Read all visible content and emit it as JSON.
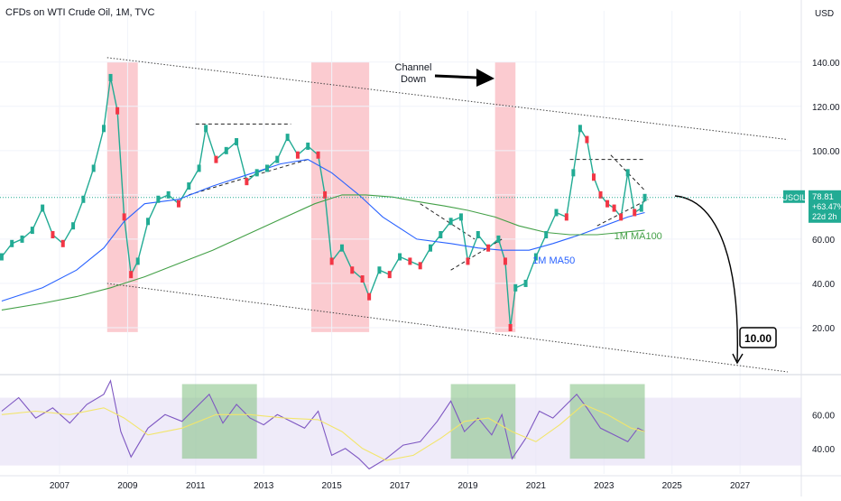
{
  "header": {
    "title": "CFDs on WTI Crude Oil, 1M, TVC",
    "currency": "USD"
  },
  "price_tag": {
    "symbol": "USOIL",
    "price": "78.81",
    "change": "+63.47%",
    "countdown": "22d 2h",
    "color": "#22ab94"
  },
  "annotations": {
    "channel_label_line1": "Channel",
    "channel_label_line2": "Down",
    "ma50_label": "1M MA50",
    "ma100_label": "1M MA100",
    "target_label": "10.00"
  },
  "colors": {
    "candle_up": "#22ab94",
    "candle_down": "#f23645",
    "ma50": "#2962ff",
    "ma100": "#43a047",
    "rsi": "#7e57c2",
    "rsi_ma": "#f2e56b",
    "red_zone": "#f7a1a9",
    "green_zone": "#7fbf7f",
    "rsi_band": "#e8e3f7"
  },
  "chart_data": [
    {
      "type": "candlestick",
      "title": "CFDs on WTI Crude Oil, 1M, TVC",
      "y_unit": "USD",
      "y_ticks": [
        20,
        40,
        60,
        80,
        100,
        120,
        140
      ],
      "y_tick_labels": [
        "20.00",
        "40.00",
        "60.00",
        "80.00",
        "100.00",
        "120.00",
        "140.00"
      ],
      "ylim": [
        0,
        155
      ],
      "x_ticks": [
        "2007",
        "2009",
        "2011",
        "2013",
        "2015",
        "2017",
        "2019",
        "2021",
        "2023",
        "2025",
        "2027"
      ],
      "xlim": [
        2005.25,
        2028.8
      ],
      "grid": true,
      "series": [
        {
          "name": "Price",
          "x": [
            2005.3,
            2005.6,
            2005.9,
            2006.2,
            2006.5,
            2006.8,
            2007.1,
            2007.4,
            2007.7,
            2008.0,
            2008.3,
            2008.5,
            2008.7,
            2008.9,
            2009.1,
            2009.3,
            2009.6,
            2009.9,
            2010.2,
            2010.5,
            2010.8,
            2011.1,
            2011.3,
            2011.6,
            2011.9,
            2012.2,
            2012.5,
            2012.8,
            2013.1,
            2013.4,
            2013.7,
            2014.0,
            2014.3,
            2014.6,
            2014.8,
            2015.0,
            2015.3,
            2015.6,
            2015.9,
            2016.1,
            2016.4,
            2016.7,
            2017.0,
            2017.3,
            2017.6,
            2017.9,
            2018.2,
            2018.5,
            2018.8,
            2019.0,
            2019.3,
            2019.6,
            2019.9,
            2020.1,
            2020.25,
            2020.4,
            2020.7,
            2021.0,
            2021.3,
            2021.6,
            2021.9,
            2022.1,
            2022.3,
            2022.5,
            2022.7,
            2022.9,
            2023.1,
            2023.3,
            2023.5,
            2023.7,
            2023.9,
            2024.1,
            2024.2
          ],
          "y": [
            52,
            58,
            60,
            64,
            74,
            62,
            58,
            66,
            78,
            92,
            110,
            133,
            118,
            70,
            44,
            50,
            68,
            78,
            80,
            76,
            84,
            92,
            110,
            96,
            100,
            104,
            86,
            90,
            92,
            96,
            106,
            98,
            102,
            98,
            80,
            50,
            56,
            46,
            42,
            34,
            46,
            44,
            52,
            50,
            48,
            56,
            62,
            68,
            70,
            50,
            62,
            56,
            60,
            50,
            20,
            38,
            40,
            52,
            62,
            72,
            70,
            90,
            110,
            105,
            88,
            80,
            76,
            74,
            70,
            90,
            72,
            74,
            78.81
          ]
        },
        {
          "name": "1M MA50",
          "x": [
            2005.3,
            2006.5,
            2007.5,
            2008.3,
            2008.9,
            2009.5,
            2010.5,
            2011.5,
            2012.5,
            2013.5,
            2014.3,
            2015.0,
            2015.8,
            2016.5,
            2017.5,
            2018.5,
            2019.3,
            2020.0,
            2020.8,
            2021.5,
            2022.3,
            2023.0,
            2023.7,
            2024.2
          ],
          "y": [
            32,
            38,
            46,
            56,
            68,
            76,
            78,
            84,
            89,
            94,
            96,
            90,
            80,
            70,
            60,
            58,
            56,
            55,
            55,
            58,
            62,
            66,
            70,
            72
          ]
        },
        {
          "name": "1M MA100",
          "x": [
            2005.3,
            2006.5,
            2007.5,
            2008.5,
            2009.5,
            2010.5,
            2011.5,
            2012.5,
            2013.5,
            2014.5,
            2015.3,
            2016.0,
            2016.8,
            2017.5,
            2018.3,
            2019.0,
            2019.8,
            2020.5,
            2021.3,
            2022.0,
            2022.8,
            2023.5,
            2024.2
          ],
          "y": [
            28,
            31,
            34,
            38,
            43,
            49,
            55,
            62,
            69,
            76,
            80,
            80,
            79,
            77,
            75,
            73,
            70,
            66,
            63,
            62,
            62,
            63,
            64
          ]
        }
      ],
      "red_zones": [
        [
          2008.4,
          2009.3
        ],
        [
          2014.4,
          2016.1
        ],
        [
          2019.8,
          2020.4
        ]
      ]
    },
    {
      "type": "line",
      "y_ticks": [
        40,
        60
      ],
      "y_tick_labels": [
        "40.00",
        "60.00"
      ],
      "ylim": [
        25,
        82
      ],
      "band": [
        30,
        70
      ],
      "grid": true,
      "series": [
        {
          "name": "RSI",
          "x": [
            2005.3,
            2005.8,
            2006.3,
            2006.8,
            2007.3,
            2007.8,
            2008.3,
            2008.5,
            2008.8,
            2009.1,
            2009.6,
            2010.1,
            2010.6,
            2011.1,
            2011.4,
            2011.8,
            2012.2,
            2012.6,
            2013.0,
            2013.4,
            2013.8,
            2014.2,
            2014.6,
            2015.0,
            2015.4,
            2015.8,
            2016.1,
            2016.6,
            2017.1,
            2017.6,
            2018.1,
            2018.5,
            2018.9,
            2019.3,
            2019.7,
            2020.0,
            2020.3,
            2020.7,
            2021.1,
            2021.5,
            2021.9,
            2022.2,
            2022.5,
            2022.9,
            2023.3,
            2023.7,
            2024.0,
            2024.2
          ],
          "y": [
            62,
            70,
            58,
            64,
            55,
            66,
            72,
            80,
            50,
            35,
            52,
            60,
            56,
            66,
            72,
            55,
            66,
            58,
            54,
            60,
            56,
            52,
            62,
            36,
            40,
            34,
            28,
            34,
            42,
            44,
            56,
            68,
            50,
            58,
            48,
            60,
            34,
            46,
            62,
            58,
            66,
            72,
            64,
            52,
            48,
            44,
            52,
            50
          ]
        },
        {
          "name": "RSI MA",
          "x": [
            2005.3,
            2006.3,
            2007.3,
            2008.3,
            2008.9,
            2009.6,
            2010.6,
            2011.6,
            2012.6,
            2013.6,
            2014.6,
            2015.3,
            2015.9,
            2016.6,
            2017.4,
            2018.2,
            2018.9,
            2019.6,
            2020.3,
            2021.0,
            2021.7,
            2022.4,
            2023.1,
            2023.8,
            2024.2
          ],
          "y": [
            60,
            62,
            60,
            64,
            58,
            48,
            52,
            60,
            60,
            58,
            57,
            50,
            40,
            33,
            36,
            46,
            56,
            58,
            50,
            44,
            54,
            66,
            60,
            52,
            50
          ]
        }
      ],
      "green_zones": [
        [
          2010.6,
          2012.8
        ],
        [
          2018.5,
          2020.4
        ],
        [
          2022.0,
          2024.2
        ]
      ]
    }
  ]
}
